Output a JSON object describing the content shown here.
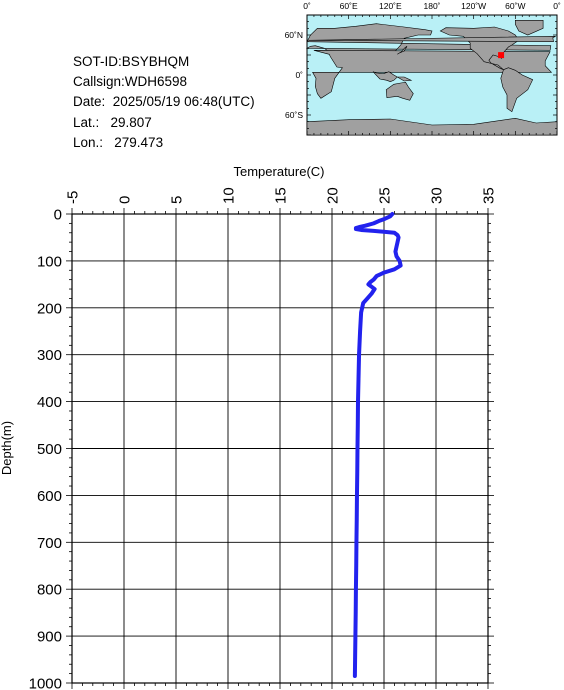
{
  "info": {
    "sot_id": "SOT-ID:BSYBHQM",
    "callsign": "Callsign:WDH6598",
    "date": "Date:  2025/05/19 06:48(UTC)",
    "lat": "Lat.:   29.807",
    "lon": "Lon.:   279.473"
  },
  "map": {
    "lon_labels": [
      "0˚",
      "60˚E",
      "120˚E",
      "180˚",
      "120˚W",
      "60˚W",
      "0˚"
    ],
    "lat_labels": [
      "60˚N",
      "0˚",
      "60˚S"
    ],
    "ocean_color": "#b9f0f6",
    "land_color": "#a0a0a0",
    "marker_color": "#ff0000",
    "marker_lon": 279.473,
    "marker_lat": 29.807
  },
  "chart_data": {
    "type": "line",
    "xlabel": "Temperature(C)",
    "ylabel": "Depth(m)",
    "xlim": [
      -5,
      35
    ],
    "ylim": [
      0,
      1000
    ],
    "x_ticks": [
      -5,
      0,
      5,
      10,
      15,
      20,
      25,
      30,
      35
    ],
    "y_ticks": [
      0,
      100,
      200,
      300,
      400,
      500,
      600,
      700,
      800,
      900,
      1000
    ],
    "y_inverted": true,
    "grid": true,
    "line_color": "#2222ee",
    "series": [
      {
        "depth": [
          0,
          5,
          10,
          15,
          20,
          25,
          28,
          30,
          32,
          34,
          36,
          40,
          45,
          50,
          60,
          70,
          80,
          90,
          100,
          110,
          118,
          125,
          132,
          140,
          145,
          150,
          155,
          160,
          170,
          180,
          190,
          200,
          210,
          250,
          300,
          350,
          400,
          450,
          500,
          550,
          600,
          650,
          700,
          750,
          800,
          850,
          900,
          950,
          985
        ],
        "temperature": [
          25.8,
          25.6,
          25.1,
          24.5,
          24.0,
          23.2,
          22.6,
          22.3,
          22.3,
          22.8,
          24.0,
          26.0,
          26.3,
          26.4,
          26.3,
          26.2,
          26.1,
          26.2,
          26.5,
          26.6,
          26.0,
          25.0,
          24.3,
          24.0,
          23.7,
          23.5,
          23.8,
          24.1,
          23.8,
          23.4,
          23.0,
          22.9,
          22.8,
          22.7,
          22.6,
          22.55,
          22.5,
          22.48,
          22.45,
          22.43,
          22.4,
          22.38,
          22.35,
          22.33,
          22.3,
          22.28,
          22.25,
          22.22,
          22.2
        ]
      }
    ]
  }
}
